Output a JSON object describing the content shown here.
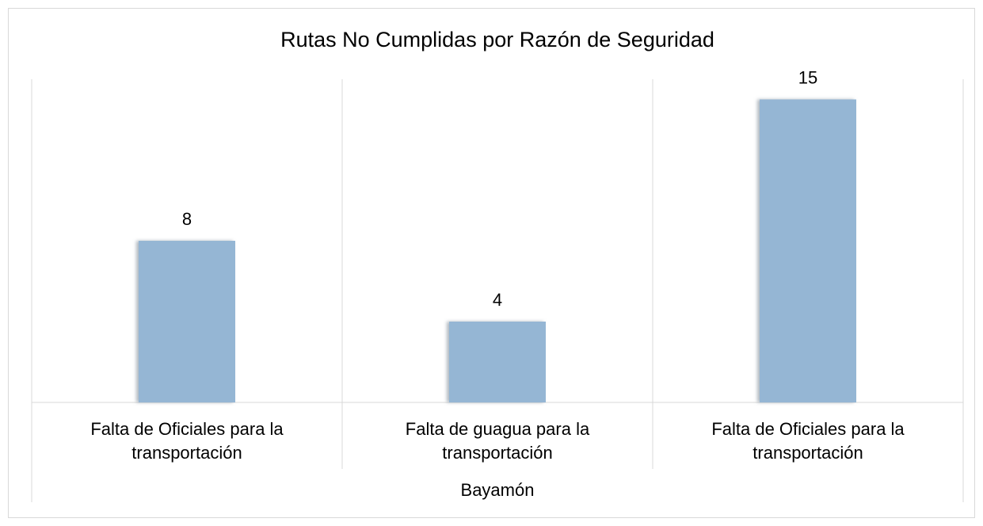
{
  "chart_data": {
    "type": "bar",
    "title": "Rutas No Cumplidas por Razón de Seguridad",
    "categories": [
      "Falta de Oficiales para la transportación",
      "Falta de guagua para la transportación",
      "Falta de Oficiales para la transportación"
    ],
    "group": "Bayamón",
    "values": [
      8,
      4,
      15
    ],
    "color": "#95b6d4",
    "ylim": [
      0,
      16
    ]
  }
}
